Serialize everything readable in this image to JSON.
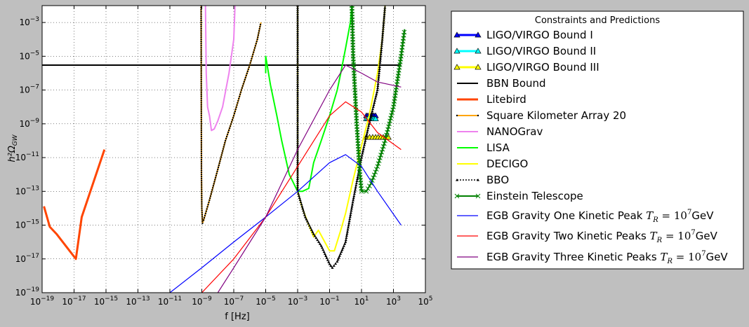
{
  "chart_data": {
    "type": "line",
    "xlabel": "f [Hz]",
    "ylabel": "h²Ω_GW",
    "xscale": "log",
    "yscale": "log",
    "xlim": [
      1e-19,
      100000.0
    ],
    "ylim": [
      1e-19,
      0.01
    ],
    "grid": true,
    "legend": {
      "title": "Constraints and Predictions",
      "placement": "right-outside"
    },
    "x_ticks": [
      {
        "value": 1e-19,
        "label": "10^-19"
      },
      {
        "value": 1e-17,
        "label": "10^-17"
      },
      {
        "value": 1e-15,
        "label": "10^-15"
      },
      {
        "value": 1e-13,
        "label": "10^-13"
      },
      {
        "value": 1e-11,
        "label": "10^-11"
      },
      {
        "value": 1e-09,
        "label": "10^-9"
      },
      {
        "value": 1e-07,
        "label": "10^-7"
      },
      {
        "value": 1e-05,
        "label": "10^-5"
      },
      {
        "value": 0.001,
        "label": "10^-3"
      },
      {
        "value": 0.1,
        "label": "10^-1"
      },
      {
        "value": 10,
        "label": "10^1"
      },
      {
        "value": 1000,
        "label": "10^3"
      },
      {
        "value": 100000,
        "label": "10^5"
      }
    ],
    "y_ticks": [
      {
        "value": 1e-19,
        "label": "10^-19"
      },
      {
        "value": 1e-17,
        "label": "10^-17"
      },
      {
        "value": 1e-15,
        "label": "10^-15"
      },
      {
        "value": 1e-13,
        "label": "10^-13"
      },
      {
        "value": 1e-11,
        "label": "10^-11"
      },
      {
        "value": 1e-09,
        "label": "10^-9"
      },
      {
        "value": 1e-07,
        "label": "10^-7"
      },
      {
        "value": 1e-05,
        "label": "10^-5"
      },
      {
        "value": 0.001,
        "label": "10^-3"
      }
    ],
    "series": [
      {
        "name": "LIGO/VIRGO Bound I",
        "color": "#0000ff",
        "width": 3,
        "marker": "triangle",
        "markerFill": "#0000ff",
        "points": [
          [
            20,
            3e-09
          ],
          [
            25,
            3e-09
          ],
          [
            32,
            3e-09
          ],
          [
            40,
            3e-09
          ],
          [
            50,
            3e-09
          ],
          [
            60,
            3e-09
          ],
          [
            76,
            3e-09
          ]
        ]
      },
      {
        "name": "LIGO/VIRGO Bound II",
        "color": "#00ffff",
        "width": 3,
        "marker": "triangle",
        "markerFill": "#00ffff",
        "points": [
          [
            20,
            2e-09
          ],
          [
            25,
            2e-09
          ],
          [
            32,
            2e-09
          ],
          [
            40,
            2e-09
          ],
          [
            50,
            2e-09
          ],
          [
            60,
            2e-09
          ],
          [
            76,
            2e-09
          ]
        ]
      },
      {
        "name": "LIGO/VIRGO Bound III",
        "color": "#ffff00",
        "width": 3,
        "marker": "triangle",
        "markerFill": "#ffff00",
        "points": [
          [
            20,
            1.6e-10
          ],
          [
            32,
            1.6e-10
          ],
          [
            50,
            1.6e-10
          ],
          [
            76,
            1.6e-10
          ],
          [
            110,
            1.6e-10
          ],
          [
            160,
            1.6e-10
          ],
          [
            230,
            1.6e-10
          ],
          [
            330,
            1.6e-10
          ],
          [
            480,
            1.6e-10
          ]
        ]
      },
      {
        "name": "BBN Bound",
        "color": "#000000",
        "width": 2,
        "marker": "none",
        "points": [
          [
            1e-19,
            3e-06
          ],
          [
            3000.0,
            3e-06
          ]
        ]
      },
      {
        "name": "Litebird",
        "color": "#ff4500",
        "width": 3,
        "marker": "none",
        "points": [
          [
            1.3e-19,
            1.3e-14
          ],
          [
            3e-19,
            8e-16
          ],
          [
            8e-19,
            3e-16
          ],
          [
            1.3e-17,
            1e-17
          ],
          [
            3e-17,
            3e-15
          ],
          [
            8e-16,
            3e-11
          ]
        ]
      },
      {
        "name": "Square Kilometer Array 20",
        "color": "#ffa500",
        "width": 2,
        "marker": "dot",
        "points": [
          [
            9e-10,
            0.01
          ],
          [
            9.5e-10,
            1e-12
          ],
          [
            1e-09,
            1e-14
          ],
          [
            1.1e-09,
            1.3e-15
          ],
          [
            1.3e-09,
            2e-15
          ],
          [
            3e-09,
            3e-14
          ],
          [
            1e-08,
            2e-12
          ],
          [
            3e-08,
            1e-10
          ],
          [
            1e-07,
            3e-09
          ],
          [
            3e-07,
            1e-07
          ],
          [
            1e-06,
            3e-06
          ],
          [
            3e-06,
            0.0001
          ],
          [
            5e-06,
            0.001
          ]
        ]
      },
      {
        "name": "NANOGrav",
        "color": "#ee82ee",
        "width": 2,
        "marker": "none",
        "points": [
          [
            1.7e-09,
            0.01
          ],
          [
            1.9e-09,
            1e-06
          ],
          [
            2.3e-09,
            1e-08
          ],
          [
            3e-09,
            3e-09
          ],
          [
            4e-09,
            4e-10
          ],
          [
            6e-09,
            5e-10
          ],
          [
            1e-08,
            1.5e-09
          ],
          [
            2e-08,
            1e-08
          ],
          [
            5e-08,
            1e-06
          ],
          [
            1e-07,
            0.0001
          ],
          [
            1.2e-07,
            0.01
          ]
        ]
      },
      {
        "name": "LISA",
        "color": "#00ff00",
        "width": 2,
        "marker": "none",
        "points": [
          [
            1e-05,
            1e-06
          ],
          [
            1e-05,
            1e-05
          ],
          [
            2e-05,
            2e-07
          ],
          [
            5e-05,
            3e-09
          ],
          [
            0.0001,
            1e-10
          ],
          [
            0.0003,
            1e-12
          ],
          [
            0.001,
            1e-13
          ],
          [
            0.002,
            1e-13
          ],
          [
            0.005,
            1.5e-13
          ],
          [
            0.01,
            5e-12
          ],
          [
            0.03,
            1e-10
          ],
          [
            0.1,
            3e-09
          ],
          [
            0.3,
            1e-07
          ],
          [
            0.5,
            1e-06
          ],
          [
            1,
            3e-05
          ],
          [
            2,
            0.001
          ],
          [
            2.5,
            0.01
          ]
        ]
      },
      {
        "name": "DECIGO",
        "color": "#ffff00",
        "width": 2,
        "marker": "none",
        "points": [
          [
            0.001,
            0.01
          ],
          [
            0.001,
            1e-13
          ],
          [
            0.002,
            1e-14
          ],
          [
            0.005,
            1e-15
          ],
          [
            0.01,
            2e-16
          ],
          [
            0.02,
            5e-16
          ],
          [
            0.05,
            1e-16
          ],
          [
            0.1,
            3e-17
          ],
          [
            0.2,
            3e-17
          ],
          [
            0.5,
            5e-16
          ],
          [
            1,
            5e-15
          ],
          [
            3,
            5e-13
          ],
          [
            10,
            5e-11
          ],
          [
            30,
            3e-09
          ],
          [
            100,
            1e-06
          ],
          [
            200,
            0.0001
          ],
          [
            300,
            0.01
          ]
        ]
      },
      {
        "name": "BBO",
        "color": "#000000",
        "width": 1.5,
        "marker": "smalltri",
        "dash": "2,2",
        "points": [
          [
            0.001,
            0.01
          ],
          [
            0.001,
            1e-13
          ],
          [
            0.003,
            3e-15
          ],
          [
            0.01,
            3e-16
          ],
          [
            0.03,
            6e-17
          ],
          [
            0.1,
            5e-18
          ],
          [
            0.15,
            3e-18
          ],
          [
            0.3,
            7e-18
          ],
          [
            1,
            1e-16
          ],
          [
            3,
            3e-14
          ],
          [
            10,
            1e-11
          ],
          [
            30,
            1e-09
          ],
          [
            100,
            1e-07
          ],
          [
            200,
            0.0001
          ],
          [
            300,
            0.01
          ]
        ]
      },
      {
        "name": "Einstein Telescope",
        "color": "#008000",
        "width": 2,
        "marker": "x",
        "points": [
          [
            2.5,
            0.01
          ],
          [
            3,
            1e-05
          ],
          [
            5,
            1e-09
          ],
          [
            8,
            1e-12
          ],
          [
            10,
            1e-13
          ],
          [
            20,
            1e-13
          ],
          [
            40,
            3e-13
          ],
          [
            100,
            3e-12
          ],
          [
            300,
            1e-10
          ],
          [
            1000,
            1e-08
          ],
          [
            3000,
            1e-05
          ],
          [
            5000,
            0.0004
          ]
        ]
      },
      {
        "name": "EGB Gravity One Kinetic Peak",
        "label_rich": true,
        "color": "#0000ff",
        "width": 1.2,
        "marker": "none",
        "points": [
          [
            1e-11,
            1e-19
          ],
          [
            1e-09,
            3e-18
          ],
          [
            1e-07,
            1e-16
          ],
          [
            1e-05,
            3e-15
          ],
          [
            0.001,
            1e-13
          ],
          [
            0.1,
            5e-12
          ],
          [
            1,
            1.5e-11
          ],
          [
            10,
            3e-12
          ],
          [
            100,
            1e-13
          ],
          [
            3000,
            1e-15
          ]
        ]
      },
      {
        "name": "EGB Gravity Two Kinetic Peaks",
        "label_rich": true,
        "color": "#ff0000",
        "width": 1.2,
        "marker": "none",
        "points": [
          [
            1e-09,
            1e-19
          ],
          [
            1e-07,
            1e-17
          ],
          [
            1e-05,
            3e-15
          ],
          [
            0.001,
            3e-12
          ],
          [
            0.1,
            3e-09
          ],
          [
            1,
            2e-08
          ],
          [
            10,
            5e-09
          ],
          [
            100,
            3e-10
          ],
          [
            3000,
            3e-11
          ]
        ]
      },
      {
        "name": "EGB Gravity Three Kinetic Peaks",
        "label_rich": true,
        "color": "#800080",
        "width": 1.2,
        "marker": "none",
        "points": [
          [
            1e-08,
            1e-19
          ],
          [
            1e-07,
            3e-18
          ],
          [
            1e-05,
            3e-15
          ],
          [
            0.001,
            3e-11
          ],
          [
            0.1,
            1e-07
          ],
          [
            1,
            3e-06
          ],
          [
            10,
            1e-06
          ],
          [
            100,
            3e-07
          ],
          [
            3000,
            1.5e-07
          ]
        ]
      }
    ],
    "legend_labels": [
      {
        "text": "LIGO/VIRGO Bound I"
      },
      {
        "text": "LIGO/VIRGO Bound II"
      },
      {
        "text": "LIGO/VIRGO Bound III"
      },
      {
        "text": "BBN Bound"
      },
      {
        "text": "Litebird"
      },
      {
        "text": "Square Kilometer Array 20"
      },
      {
        "text": "NANOGrav"
      },
      {
        "text": "LISA"
      },
      {
        "text": "DECIGO"
      },
      {
        "text": "BBO"
      },
      {
        "text": "Einstein Telescope"
      },
      {
        "text": "EGB Gravity One Kinetic Peak",
        "suffix_math": "T_R = 10^7",
        "suffix_unit": "GeV"
      },
      {
        "text": "EGB Gravity Two Kinetic Peaks",
        "suffix_math": "T_R = 10^7",
        "suffix_unit": "GeV"
      },
      {
        "text": "EGB Gravity Three Kinetic Peaks",
        "suffix_math": "T_R = 10^7",
        "suffix_unit": "GeV"
      }
    ]
  }
}
